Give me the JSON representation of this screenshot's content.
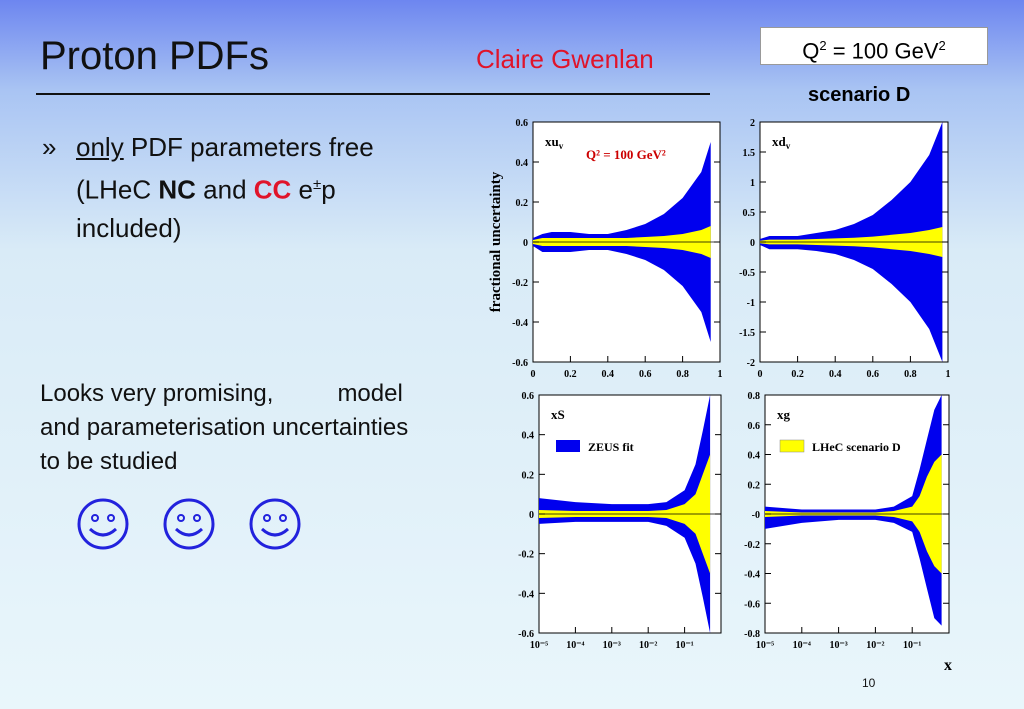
{
  "title": "Proton PDFs",
  "author": "Claire Gwenlan",
  "q2_box": {
    "prefix": "Q",
    "sup1": "2",
    "middle": " = 100 GeV",
    "sup2": "2"
  },
  "scenario": "scenario D",
  "bullet": {
    "mark": "»",
    "only": "only",
    "line1_rest": " PDF parameters free",
    "line2_a": "(LHeC ",
    "nc": "NC",
    "and": " and ",
    "cc": "CC",
    "epm": " e",
    "pm": "±",
    "p": "p",
    "line3": "included)"
  },
  "looks": {
    "line1a": "Looks very promising,",
    "line1b": "model",
    "line2": "and parameterisation uncertainties",
    "line3": "to be studied"
  },
  "smileys": [
    "smiley",
    "smiley",
    "smiley"
  ],
  "colors": {
    "zeus": "#0000ee",
    "lhec": "#ffff00",
    "accent_red": "#e0142a",
    "smiley": "#2222dd"
  },
  "chart_data": {
    "type": "area",
    "ylabel": "fractional uncertainty",
    "xlabel": "x",
    "top_annotation": "Q² = 100 GeV²",
    "legend": [
      {
        "name": "ZEUS fit",
        "color": "#0000ee"
      },
      {
        "name": "LHeC scenario D",
        "color": "#ffff00"
      }
    ],
    "panels": [
      {
        "label": "xu",
        "label_sub": "v",
        "xscale": "linear",
        "xlim": [
          0,
          1
        ],
        "ylim": [
          -0.6,
          0.6
        ],
        "xticks": [
          "0",
          "0.2",
          "0.4",
          "0.6",
          "0.8",
          "1"
        ],
        "yticks": [
          "0.6",
          "0.4",
          "0.2",
          "0",
          "-0.2",
          "-0.4",
          "-0.6"
        ],
        "x": [
          0.0,
          0.05,
          0.1,
          0.2,
          0.3,
          0.4,
          0.5,
          0.6,
          0.7,
          0.8,
          0.9,
          0.95
        ],
        "zeus_upper": [
          0.02,
          0.04,
          0.05,
          0.05,
          0.04,
          0.04,
          0.06,
          0.09,
          0.14,
          0.22,
          0.35,
          0.5
        ],
        "zeus_lower": [
          -0.02,
          -0.05,
          -0.05,
          -0.05,
          -0.04,
          -0.04,
          -0.06,
          -0.09,
          -0.14,
          -0.22,
          -0.35,
          -0.5
        ],
        "lhec_upper": [
          0.01,
          0.02,
          0.02,
          0.02,
          0.02,
          0.02,
          0.02,
          0.025,
          0.03,
          0.04,
          0.06,
          0.08
        ],
        "lhec_lower": [
          -0.01,
          -0.02,
          -0.02,
          -0.02,
          -0.02,
          -0.02,
          -0.02,
          -0.025,
          -0.03,
          -0.04,
          -0.06,
          -0.08
        ]
      },
      {
        "label": "xd",
        "label_sub": "v",
        "xscale": "linear",
        "xlim": [
          0,
          1
        ],
        "ylim": [
          -2,
          2
        ],
        "xticks": [
          "0",
          "0.2",
          "0.4",
          "0.6",
          "0.8",
          "1"
        ],
        "yticks": [
          "2",
          "1.5",
          "1",
          "0.5",
          "0",
          "-0.5",
          "-1",
          "-1.5",
          "-2"
        ],
        "x": [
          0.0,
          0.05,
          0.1,
          0.2,
          0.3,
          0.4,
          0.5,
          0.6,
          0.7,
          0.8,
          0.9,
          0.97
        ],
        "zeus_upper": [
          0.05,
          0.1,
          0.1,
          0.1,
          0.15,
          0.2,
          0.3,
          0.45,
          0.7,
          1.0,
          1.45,
          2.0
        ],
        "zeus_lower": [
          -0.05,
          -0.12,
          -0.12,
          -0.12,
          -0.15,
          -0.2,
          -0.3,
          -0.45,
          -0.7,
          -1.0,
          -1.45,
          -2.0
        ],
        "lhec_upper": [
          0.02,
          0.04,
          0.04,
          0.04,
          0.05,
          0.06,
          0.07,
          0.09,
          0.12,
          0.15,
          0.2,
          0.25
        ],
        "lhec_lower": [
          -0.02,
          -0.04,
          -0.04,
          -0.04,
          -0.05,
          -0.06,
          -0.07,
          -0.09,
          -0.12,
          -0.15,
          -0.2,
          -0.25
        ]
      },
      {
        "label": "xS",
        "label_sub": "",
        "xscale": "log",
        "xlim": [
          -5,
          0
        ],
        "ylim": [
          -0.6,
          0.6
        ],
        "xticks": [
          "10⁻⁵",
          "10⁻⁴",
          "10⁻³",
          "10⁻²",
          "10⁻¹"
        ],
        "yticks": [
          "0.6",
          "0.4",
          "0.2",
          "0",
          "-0.2",
          "-0.4",
          "-0.6"
        ],
        "x": [
          -5,
          -4,
          -3,
          -2,
          -1.5,
          -1,
          -0.7,
          -0.5,
          -0.3
        ],
        "zeus_upper": [
          0.08,
          0.06,
          0.05,
          0.05,
          0.06,
          0.12,
          0.25,
          0.42,
          0.6
        ],
        "zeus_lower": [
          -0.05,
          -0.04,
          -0.04,
          -0.04,
          -0.06,
          -0.12,
          -0.25,
          -0.42,
          -0.6
        ],
        "lhec_upper": [
          0.02,
          0.015,
          0.015,
          0.015,
          0.02,
          0.05,
          0.1,
          0.2,
          0.3
        ],
        "lhec_lower": [
          -0.02,
          -0.015,
          -0.015,
          -0.015,
          -0.02,
          -0.05,
          -0.1,
          -0.2,
          -0.3
        ]
      },
      {
        "label": "xg",
        "label_sub": "",
        "xscale": "log",
        "xlim": [
          -5,
          0
        ],
        "ylim": [
          -0.8,
          0.8
        ],
        "xticks": [
          "10⁻⁵",
          "10⁻⁴",
          "10⁻³",
          "10⁻²",
          "10⁻¹"
        ],
        "yticks": [
          "0.8",
          "0.6",
          "0.4",
          "0.2",
          "-0",
          "-0.2",
          "-0.4",
          "-0.6",
          "-0.8"
        ],
        "x": [
          -5,
          -4,
          -3,
          -2,
          -1.5,
          -1,
          -0.8,
          -0.6,
          -0.4,
          -0.2
        ],
        "zeus_upper": [
          0.05,
          0.03,
          0.03,
          0.03,
          0.05,
          0.12,
          0.3,
          0.5,
          0.7,
          0.8
        ],
        "zeus_lower": [
          -0.1,
          -0.06,
          -0.04,
          -0.04,
          -0.06,
          -0.12,
          -0.3,
          -0.5,
          -0.7,
          -0.75
        ],
        "lhec_upper": [
          0.02,
          0.01,
          0.01,
          0.01,
          0.02,
          0.05,
          0.12,
          0.25,
          0.35,
          0.4
        ],
        "lhec_lower": [
          -0.02,
          -0.01,
          -0.01,
          -0.01,
          -0.02,
          -0.05,
          -0.12,
          -0.25,
          -0.35,
          -0.4
        ]
      }
    ]
  },
  "page_number": "10"
}
